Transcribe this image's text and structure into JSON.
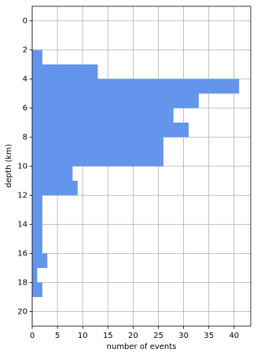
{
  "chart_data": {
    "type": "histogram",
    "orientation": "horizontal",
    "xlabel": "number of events",
    "ylabel": "depth (km)",
    "bins": [
      2,
      3,
      4,
      5,
      6,
      7,
      8,
      9,
      10,
      11,
      12,
      13,
      14,
      15,
      16,
      17,
      18,
      19
    ],
    "values": [
      2,
      13,
      41,
      33,
      28,
      31,
      26,
      26,
      8,
      9,
      2,
      2,
      2,
      2,
      3,
      1,
      2
    ],
    "color": "#6495ed",
    "xlim": [
      0,
      43.3
    ],
    "xticks": [
      0,
      5,
      10,
      15,
      20,
      25,
      30,
      35,
      40
    ],
    "ylim": [
      21,
      -1
    ],
    "yticks": [
      0,
      2,
      4,
      6,
      8,
      10,
      12,
      14,
      16,
      18,
      20
    ],
    "grid": true
  }
}
